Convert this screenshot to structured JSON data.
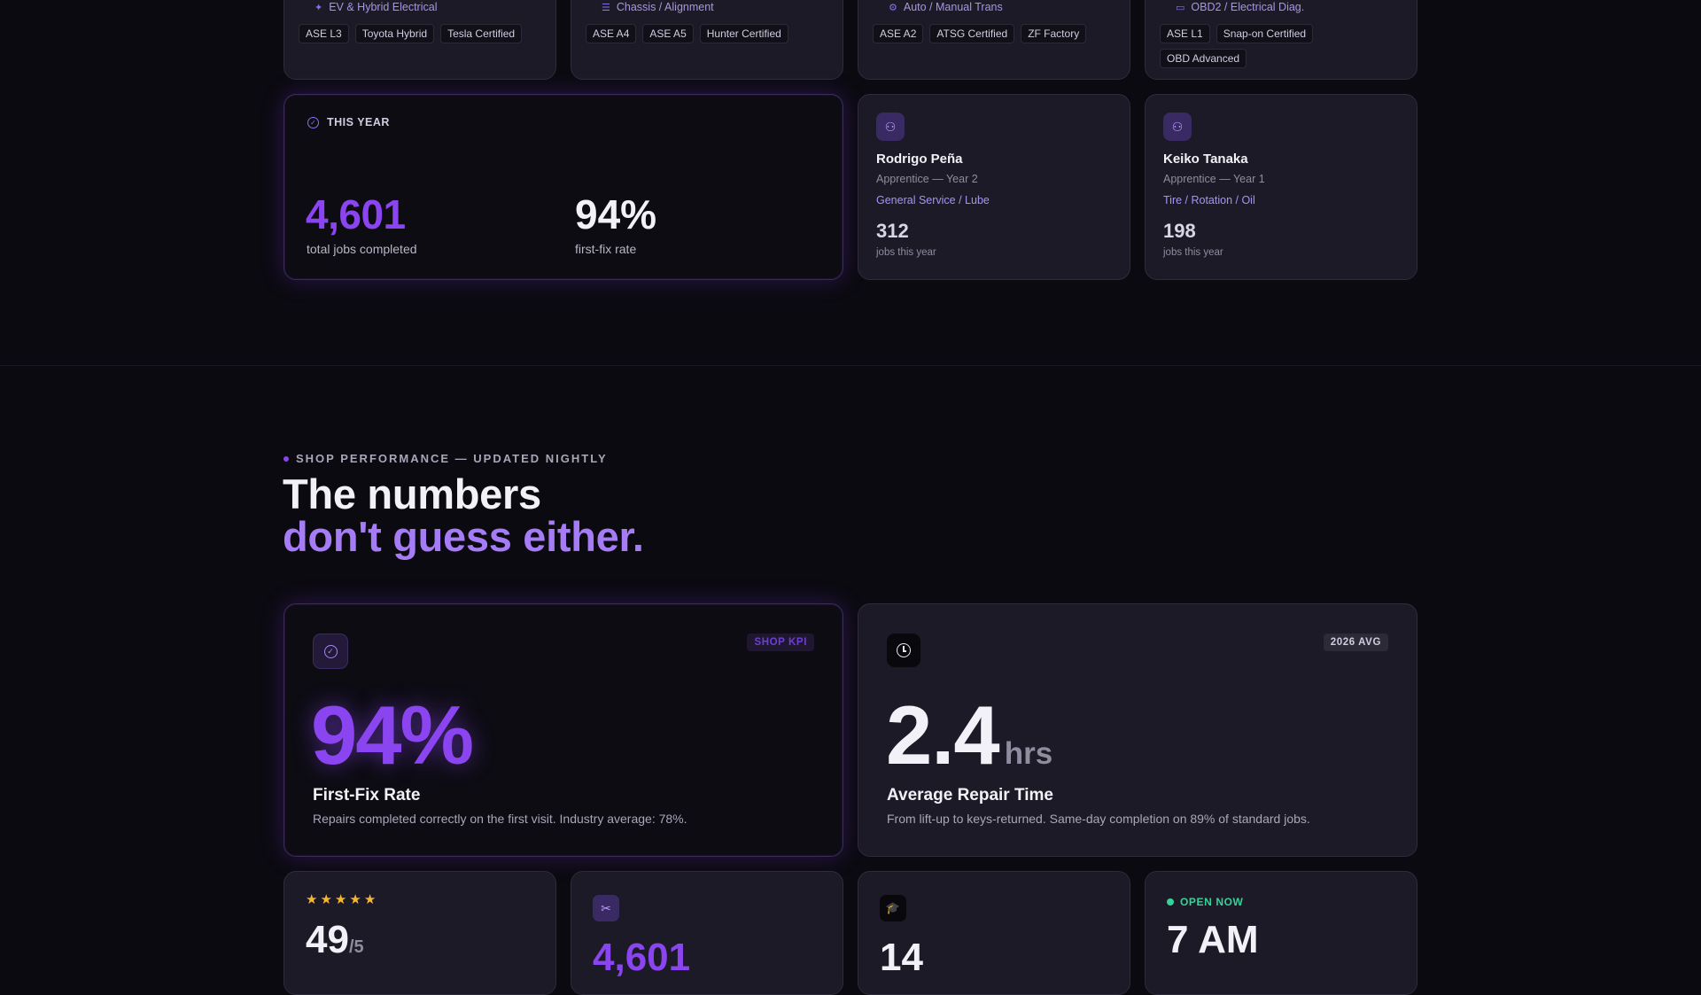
{
  "specialists": [
    {
      "specialty": "EV & Hybrid Electrical",
      "icon": "bolt-icon",
      "certs": [
        "ASE L3",
        "Toyota Hybrid",
        "Tesla Certified"
      ]
    },
    {
      "specialty": "Chassis / Alignment",
      "icon": "sliders-icon",
      "certs": [
        "ASE A4",
        "ASE A5",
        "Hunter Certified"
      ]
    },
    {
      "specialty": "Auto / Manual Trans",
      "icon": "gear-icon",
      "certs": [
        "ASE A2",
        "ATSG Certified",
        "ZF Factory"
      ]
    },
    {
      "specialty": "OBD2 / Electrical Diag.",
      "icon": "monitor-icon",
      "certs": [
        "ASE L1",
        "Snap-on Certified",
        "OBD Advanced"
      ]
    }
  ],
  "year_summary": {
    "label": "THIS YEAR",
    "jobs_value": "4,601",
    "jobs_label": "total jobs completed",
    "rate_value": "94%",
    "rate_label": "first-fix rate"
  },
  "apprentices": [
    {
      "name": "Rodrigo Peña",
      "role": "Apprentice — Year 2",
      "specialty": "General Service / Lube",
      "jobs": "312",
      "jobs_label": "jobs this year"
    },
    {
      "name": "Keiko Tanaka",
      "role": "Apprentice — Year 1",
      "specialty": "Tire / Rotation / Oil",
      "jobs": "198",
      "jobs_label": "jobs this year"
    }
  ],
  "performance": {
    "eyebrow": "SHOP PERFORMANCE — UPDATED NIGHTLY",
    "headline_line1": "The numbers",
    "headline_line2": "don't guess either."
  },
  "kpi_first_fix": {
    "badge": "SHOP KPI",
    "value": "94%",
    "title": "First-Fix Rate",
    "desc": "Repairs completed correctly on the first visit. Industry average: 78%."
  },
  "kpi_repair_time": {
    "badge": "2026 AVG",
    "value": "2.4",
    "unit": "hrs",
    "title": "Average Repair Time",
    "desc": "From lift-up to keys-returned. Same-day completion on 89% of standard jobs."
  },
  "bottom_cards": {
    "rating_value": "49",
    "rating_unit": "/5",
    "rating_stars": 5,
    "jobs_value": "4,601",
    "techs_value": "14",
    "open_label": "OPEN NOW",
    "open_value": "7 AM"
  },
  "colors": {
    "accent": "#7c3aed",
    "accent_light": "#a78bfa",
    "open_green": "#34d399",
    "star": "#f5b82e"
  }
}
